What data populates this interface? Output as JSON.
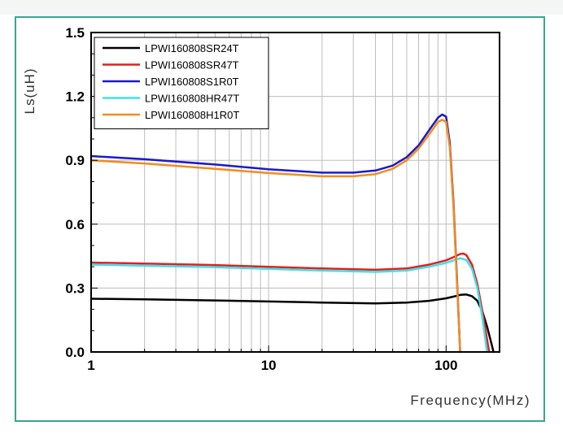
{
  "chart_data": {
    "type": "line",
    "xscale": "log",
    "xlim": [
      1,
      200
    ],
    "ylim": [
      0,
      1.5
    ],
    "xlabel": "Frequency(MHz)",
    "ylabel": "Ls(uH)",
    "xticks": [
      1,
      10,
      100
    ],
    "xtick_labels": [
      "1",
      "10",
      "100"
    ],
    "yticks": [
      0.0,
      0.3,
      0.6,
      0.9,
      1.2,
      1.5
    ],
    "ytick_labels": [
      "0.0",
      "0.3",
      "0.6",
      "0.9",
      "1.2",
      "1.5"
    ],
    "grid": true,
    "legend_position": "top-left",
    "series": [
      {
        "name": "LPWI160808SR24T",
        "color": "#000000",
        "x": [
          1,
          2,
          5,
          10,
          20,
          40,
          60,
          80,
          100,
          110,
          120,
          130,
          140,
          150,
          160,
          170,
          180,
          185
        ],
        "y": [
          0.25,
          0.247,
          0.242,
          0.237,
          0.232,
          0.228,
          0.232,
          0.24,
          0.252,
          0.26,
          0.268,
          0.27,
          0.262,
          0.24,
          0.19,
          0.12,
          0.04,
          0.0
        ]
      },
      {
        "name": "LPWI160808SR47T",
        "color": "#e02020",
        "x": [
          1,
          2,
          5,
          10,
          20,
          40,
          60,
          80,
          100,
          110,
          120,
          125,
          130,
          140,
          150,
          160,
          170,
          175
        ],
        "y": [
          0.42,
          0.415,
          0.408,
          0.4,
          0.392,
          0.386,
          0.392,
          0.41,
          0.43,
          0.445,
          0.46,
          0.462,
          0.455,
          0.41,
          0.32,
          0.19,
          0.06,
          0.0
        ]
      },
      {
        "name": "LPWI160808S1R0T",
        "color": "#1a1acc",
        "x": [
          1,
          2,
          5,
          10,
          20,
          30,
          40,
          50,
          60,
          70,
          80,
          90,
          95,
          100,
          105,
          110,
          115,
          120
        ],
        "y": [
          0.92,
          0.905,
          0.88,
          0.858,
          0.842,
          0.842,
          0.852,
          0.875,
          0.915,
          0.97,
          1.04,
          1.1,
          1.115,
          1.105,
          0.98,
          0.7,
          0.35,
          0.0
        ]
      },
      {
        "name": "LPWI160808HR47T",
        "color": "#40e0e8",
        "x": [
          1,
          2,
          5,
          10,
          20,
          40,
          60,
          80,
          100,
          110,
          120,
          130,
          140,
          150,
          160,
          170
        ],
        "y": [
          0.41,
          0.405,
          0.398,
          0.39,
          0.382,
          0.376,
          0.382,
          0.4,
          0.418,
          0.43,
          0.44,
          0.432,
          0.39,
          0.3,
          0.16,
          0.0
        ]
      },
      {
        "name": "LPWI160808H1R0T",
        "color": "#f28c1e",
        "x": [
          1,
          2,
          5,
          10,
          20,
          30,
          40,
          50,
          60,
          70,
          80,
          90,
          95,
          100,
          105,
          110,
          115,
          120
        ],
        "y": [
          0.9,
          0.885,
          0.86,
          0.84,
          0.825,
          0.825,
          0.835,
          0.86,
          0.9,
          0.955,
          1.02,
          1.08,
          1.09,
          1.08,
          0.96,
          0.68,
          0.33,
          0.0
        ]
      }
    ]
  }
}
